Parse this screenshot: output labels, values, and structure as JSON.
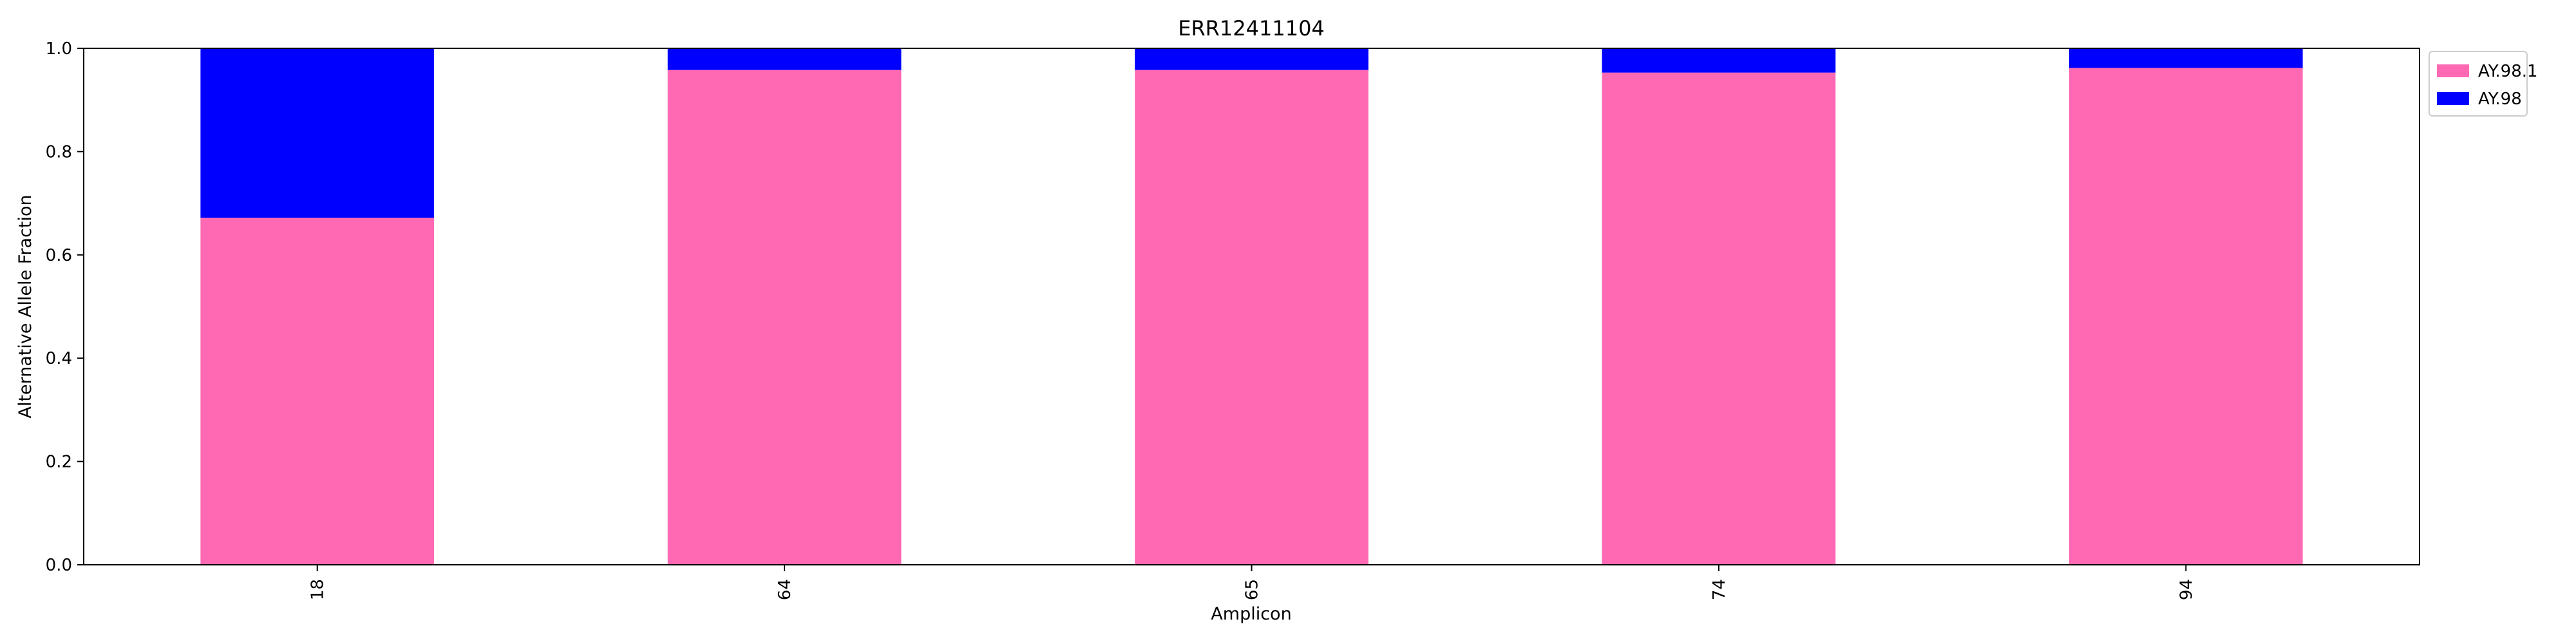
{
  "chart_data": {
    "type": "bar",
    "stacked": true,
    "title": "ERR12411104",
    "xlabel": "Amplicon",
    "ylabel": "Alternative Allele Fraction",
    "categories": [
      "18",
      "64",
      "65",
      "74",
      "94"
    ],
    "series": [
      {
        "name": "AY.98.1",
        "color": "#ff69b4",
        "values": [
          0.672,
          0.958,
          0.958,
          0.953,
          0.962
        ]
      },
      {
        "name": "AY.98",
        "color": "#0000ff",
        "values": [
          0.328,
          0.042,
          0.042,
          0.047,
          0.038
        ]
      }
    ],
    "ylim": [
      0,
      1.0
    ],
    "yticks": [
      "0.0",
      "0.2",
      "0.4",
      "0.6",
      "0.8",
      "1.0"
    ],
    "grid": false,
    "legend_position": "outside-top-right"
  }
}
